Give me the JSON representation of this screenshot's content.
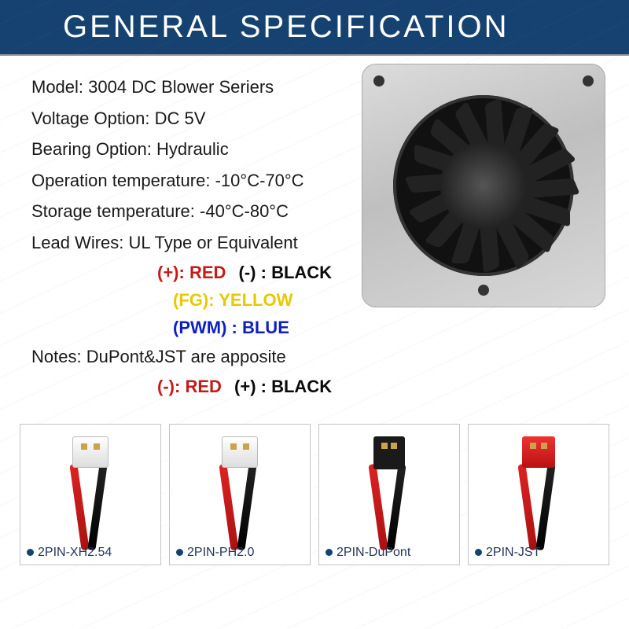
{
  "header": {
    "title": "GENERAL SPECIFICATION"
  },
  "specs": {
    "model_label": "Model:",
    "model_value": "3004 DC Blower  Seriers",
    "voltage_label": "Voltage Option:",
    "voltage_value": "DC 5V",
    "bearing_label": "Bearing Option:",
    "bearing_value": "Hydraulic",
    "op_temp_label": "Operation temperature:",
    "op_temp_value": "-10°C-70°C",
    "st_temp_label": "Storage temperature:",
    "st_temp_value": "-40°C-80°C",
    "lead_label": "Lead Wires:",
    "lead_value": "UL Type or Equivalent"
  },
  "wires1": {
    "pos_sym": "(+):",
    "pos_val": "RED",
    "neg_sym": "(-) :",
    "neg_val": "BLACK"
  },
  "wires2": {
    "fg_sym": "(FG):",
    "fg_val": "YELLOW"
  },
  "wires3": {
    "pwm_sym": "(PWM) :",
    "pwm_val": "BLUE"
  },
  "notes": {
    "label": "Notes:",
    "text": "DuPont&JST are apposite"
  },
  "wires4": {
    "neg_sym": "(-):",
    "neg_val": "RED",
    "pos_sym": "(+) :",
    "pos_val": "BLACK"
  },
  "connectors": [
    {
      "label": "2PIN-XH2.54",
      "plug_style": "white"
    },
    {
      "label": "2PIN-PH2.0",
      "plug_style": "white"
    },
    {
      "label": "2PIN-DuPont",
      "plug_style": "dark"
    },
    {
      "label": "2PIN-JST",
      "plug_style": "red"
    }
  ],
  "colors": {
    "header_bg": "#154270",
    "red": "#c51a1a",
    "black": "#0a0a0a",
    "yellow": "#e8c800",
    "blue": "#1020c0",
    "label_blue": "#23365a"
  },
  "wire_indent": {
    "l1": "160px",
    "l2": "180px",
    "l3": "180px",
    "l4": "160px"
  }
}
